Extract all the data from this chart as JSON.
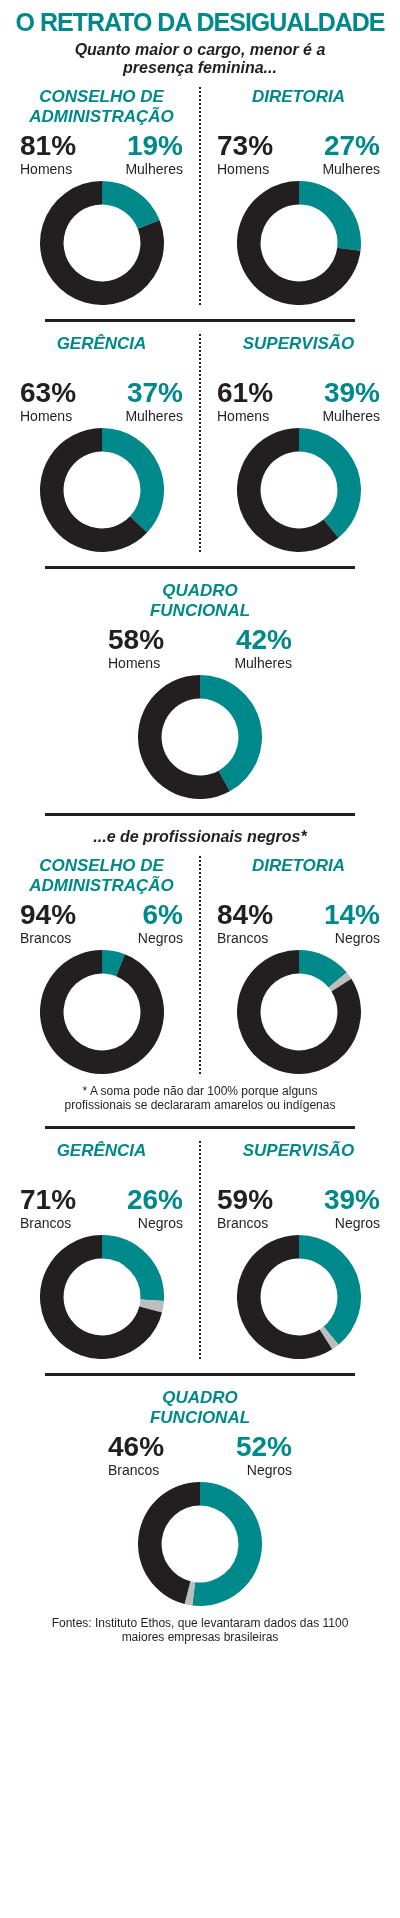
{
  "chart_data": [
    {
      "type": "donut",
      "title": "CONSELHO DE ADMINISTRAÇÃO",
      "annotations": [
        "O RETRATO DA DESIGUALDADE",
        "Quanto maior o cargo, menor é a presença feminina..."
      ],
      "categories": [
        "Homens",
        "Mulheres"
      ],
      "values": [
        81,
        19
      ],
      "value_labels": [
        "81%",
        "19%"
      ],
      "colors": [
        "#231f20",
        "#00898a"
      ]
    },
    {
      "type": "donut",
      "title": "DIRETORIA",
      "categories": [
        "Homens",
        "Mulheres"
      ],
      "values": [
        73,
        27
      ],
      "value_labels": [
        "73%",
        "27%"
      ],
      "colors": [
        "#231f20",
        "#00898a"
      ]
    },
    {
      "type": "donut",
      "title": "GERÊNCIA",
      "categories": [
        "Homens",
        "Mulheres"
      ],
      "values": [
        63,
        37
      ],
      "value_labels": [
        "63%",
        "37%"
      ],
      "colors": [
        "#231f20",
        "#00898a"
      ]
    },
    {
      "type": "donut",
      "title": "SUPERVISÃO",
      "categories": [
        "Homens",
        "Mulheres"
      ],
      "values": [
        61,
        39
      ],
      "value_labels": [
        "61%",
        "39%"
      ],
      "colors": [
        "#231f20",
        "#00898a"
      ]
    },
    {
      "type": "donut",
      "title": "QUADRO FUNCIONAL",
      "categories": [
        "Homens",
        "Mulheres"
      ],
      "values": [
        58,
        42
      ],
      "value_labels": [
        "58%",
        "42%"
      ],
      "colors": [
        "#231f20",
        "#00898a"
      ]
    },
    {
      "type": "donut",
      "title": "CONSELHO DE ADMINISTRAÇÃO",
      "annotations": [
        "...e de profissionais negros*"
      ],
      "categories": [
        "Brancos",
        "Negros"
      ],
      "values": [
        94,
        6
      ],
      "value_labels": [
        "94%",
        "6%"
      ],
      "colors": [
        "#231f20",
        "#00898a"
      ]
    },
    {
      "type": "donut",
      "title": "DIRETORIA",
      "annotations": [
        "* A soma pode não dar 100% porque alguns profissionais se declararam amarelos ou indígenas"
      ],
      "categories": [
        "Brancos",
        "Negros",
        null
      ],
      "values": [
        84,
        14,
        2
      ],
      "value_labels": [
        "84%",
        "14%",
        null
      ],
      "colors": [
        "#231f20",
        "#00898a",
        "#bdbdbd"
      ]
    },
    {
      "type": "donut",
      "title": "GERÊNCIA",
      "categories": [
        "Brancos",
        "Negros",
        null
      ],
      "values": [
        71,
        26,
        3
      ],
      "value_labels": [
        "71%",
        "26%",
        null
      ],
      "colors": [
        "#231f20",
        "#00898a",
        "#bdbdbd"
      ]
    },
    {
      "type": "donut",
      "title": "SUPERVISÃO",
      "categories": [
        "Brancos",
        "Negros",
        null
      ],
      "values": [
        59,
        39,
        2
      ],
      "value_labels": [
        "59%",
        "39%",
        null
      ],
      "colors": [
        "#231f20",
        "#00898a",
        "#bdbdbd"
      ]
    },
    {
      "type": "donut",
      "title": "QUADRO FUNCIONAL",
      "annotations": [
        "Fontes: Instituto Ethos, que levantaram dados das 1100 maiores empresas brasileiras"
      ],
      "categories": [
        "Brancos",
        "Negros",
        null
      ],
      "values": [
        46,
        52,
        2
      ],
      "value_labels": [
        "46%",
        "52%",
        null
      ],
      "colors": [
        "#231f20",
        "#00898a",
        "#bdbdbd"
      ]
    }
  ]
}
